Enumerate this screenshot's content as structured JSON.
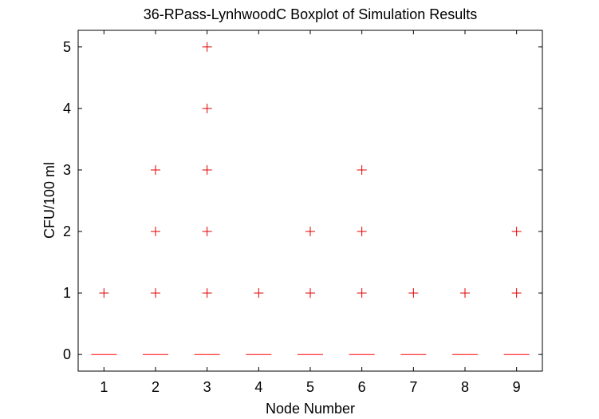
{
  "chart_data": {
    "type": "boxplot",
    "title": "36-RPass-LynhwoodC Boxplot of Simulation Results",
    "xlabel": "Node Number",
    "ylabel": "CFU/100 ml",
    "categories": [
      "1",
      "2",
      "3",
      "4",
      "5",
      "6",
      "7",
      "8",
      "9"
    ],
    "x_ticks": [
      "1",
      "2",
      "3",
      "4",
      "5",
      "6",
      "7",
      "8",
      "9"
    ],
    "y_ticks": [
      "0",
      "1",
      "2",
      "3",
      "4",
      "5"
    ],
    "ylim": [
      -0.27,
      5.27
    ],
    "xlim": [
      0.5,
      9.5
    ],
    "grid": false,
    "median": [
      0,
      0,
      0,
      0,
      0,
      0,
      0,
      0,
      0
    ],
    "outliers": [
      [
        1
      ],
      [
        1,
        2,
        3
      ],
      [
        1,
        2,
        3,
        4,
        5
      ],
      [
        1
      ],
      [
        1,
        2
      ],
      [
        1,
        2,
        3
      ],
      [
        1
      ],
      [
        1
      ],
      [
        1,
        2
      ]
    ],
    "median_color": "#ff0000",
    "outlier_color": "#e00000",
    "axis_color": "#000000"
  }
}
